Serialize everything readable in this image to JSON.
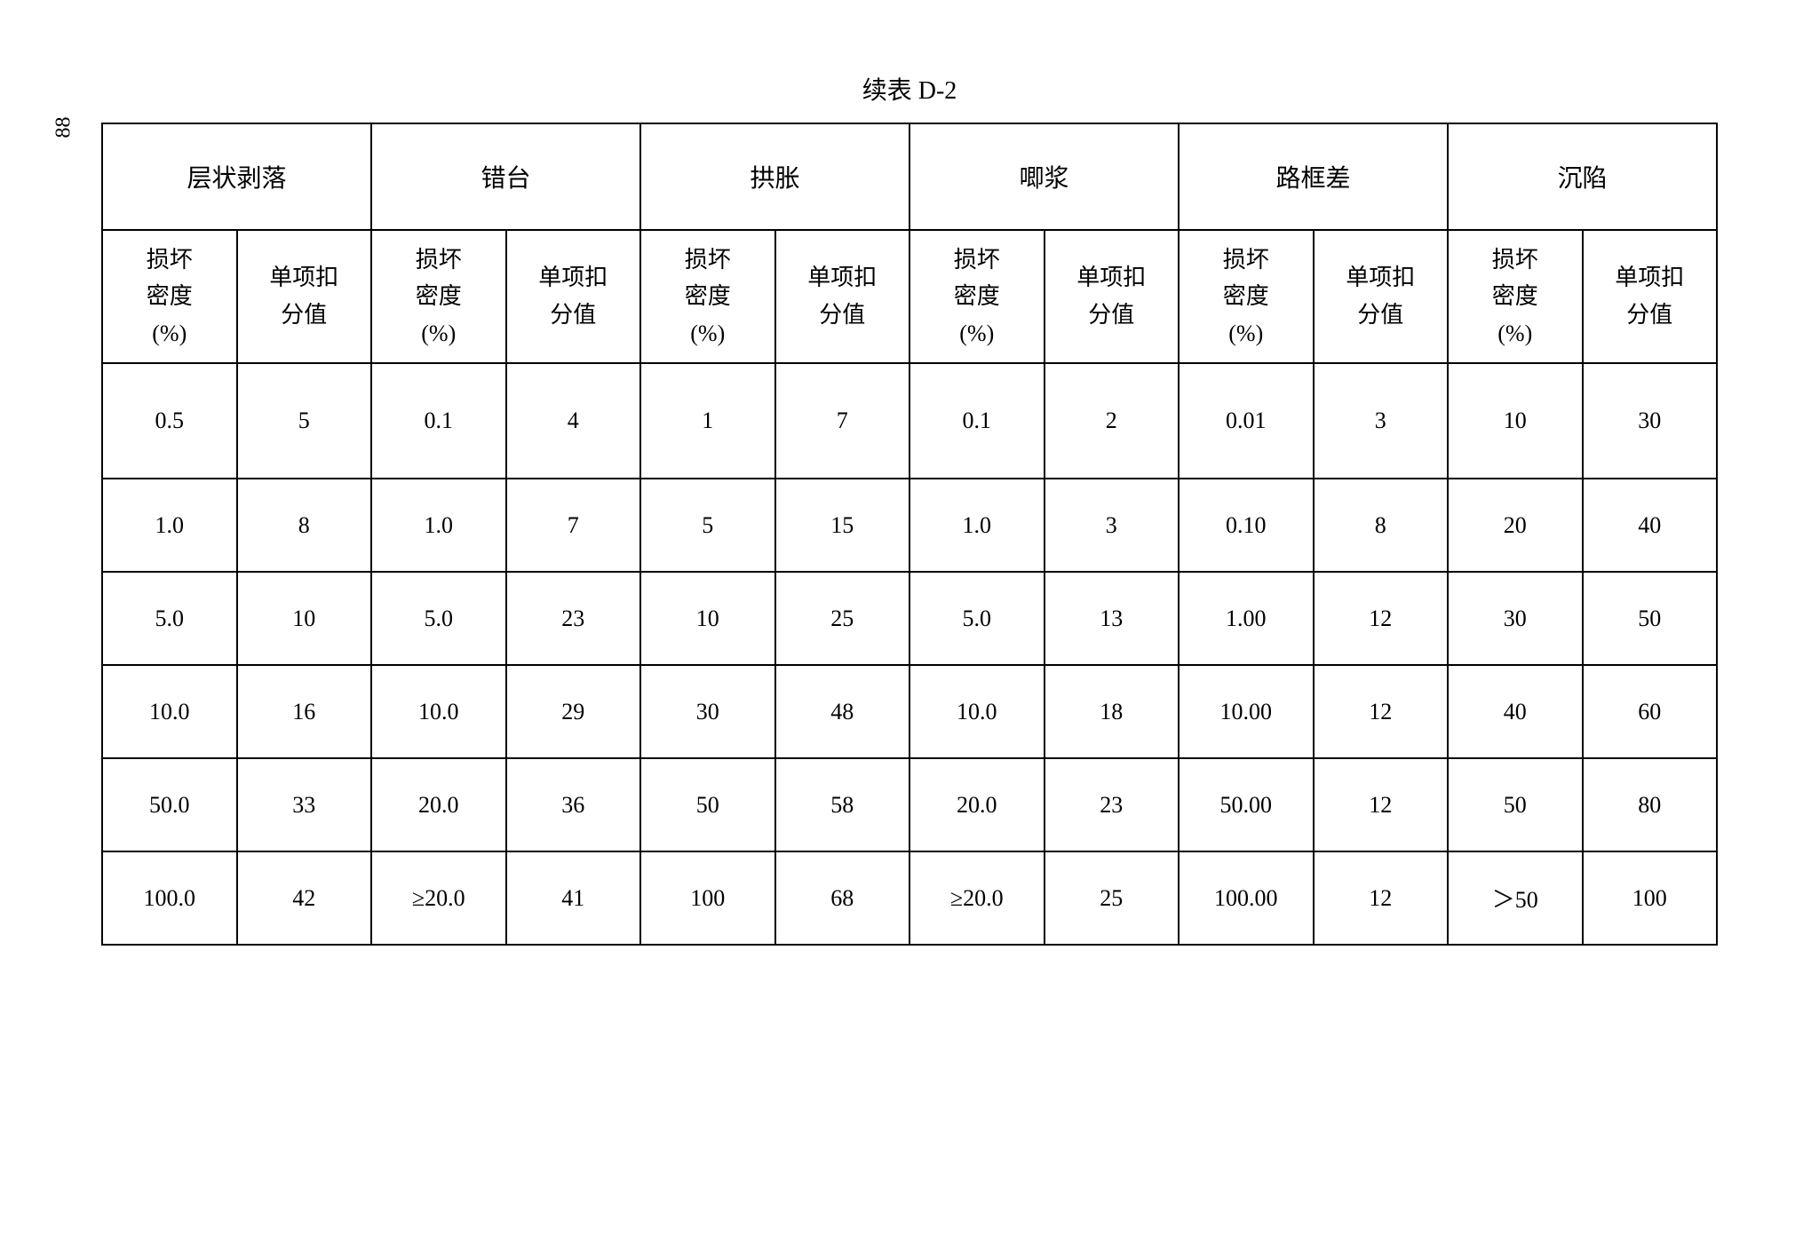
{
  "page_number": "88",
  "title": "续表 D-2",
  "table": {
    "groups": [
      "层状剥落",
      "错台",
      "拱胀",
      "唧浆",
      "路框差",
      "沉陷"
    ],
    "subheaders": {
      "density": "损坏\n密度\n(%)",
      "score": "单项扣\n分值"
    },
    "rows": [
      [
        "0.5",
        "5",
        "0.1",
        "4",
        "1",
        "7",
        "0.1",
        "2",
        "0.01",
        "3",
        "10",
        "30"
      ],
      [
        "1.0",
        "8",
        "1.0",
        "7",
        "5",
        "15",
        "1.0",
        "3",
        "0.10",
        "8",
        "20",
        "40"
      ],
      [
        "5.0",
        "10",
        "5.0",
        "23",
        "10",
        "25",
        "5.0",
        "13",
        "1.00",
        "12",
        "30",
        "50"
      ],
      [
        "10.0",
        "16",
        "10.0",
        "29",
        "30",
        "48",
        "10.0",
        "18",
        "10.00",
        "12",
        "40",
        "60"
      ],
      [
        "50.0",
        "33",
        "20.0",
        "36",
        "50",
        "58",
        "20.0",
        "23",
        "50.00",
        "12",
        "50",
        "80"
      ],
      [
        "100.0",
        "42",
        "≥20.0",
        "41",
        "100",
        "68",
        "≥20.0",
        "25",
        "100.00",
        "12",
        "＞50",
        "100"
      ]
    ]
  },
  "style": {
    "background_color": "#ffffff",
    "border_color": "#000000",
    "text_color": "#000000",
    "title_fontsize": 28,
    "cell_fontsize": 26,
    "font_family": "SimSun"
  }
}
